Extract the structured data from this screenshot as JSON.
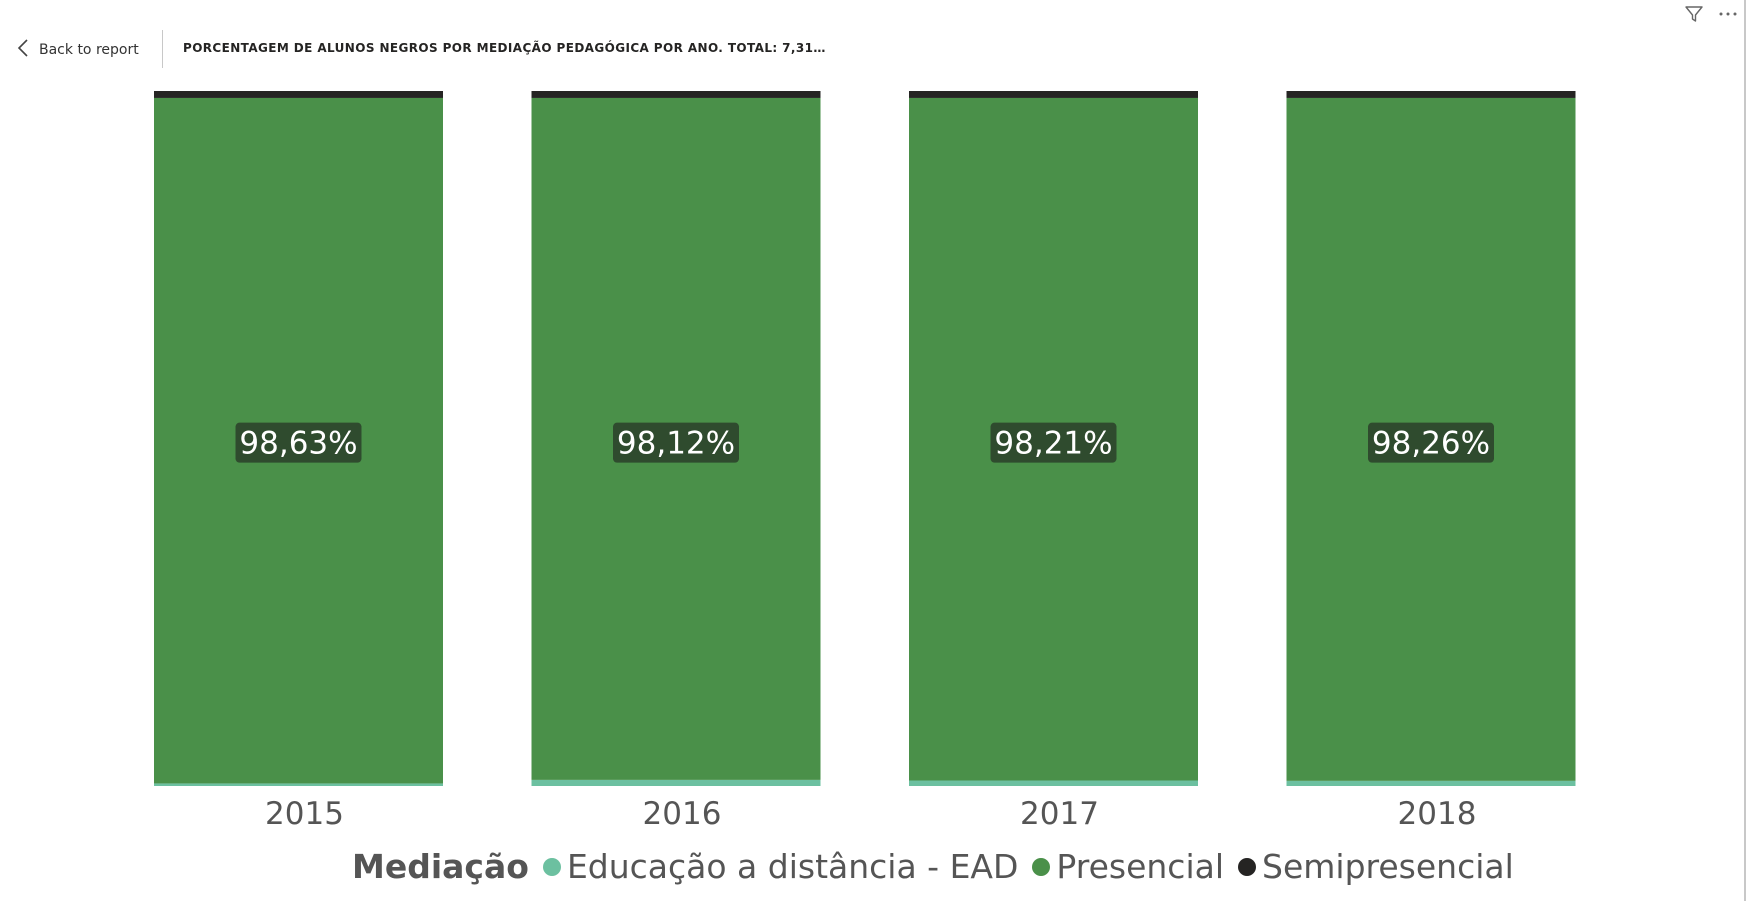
{
  "header": {
    "back_label": "Back to report",
    "title": "PORCENTAGEM DE ALUNOS NEGROS POR MEDIAÇÃO PEDAGÓGICA POR ANO. TOTAL: 7,31…"
  },
  "icons": {
    "back": "chevron-left-icon",
    "filter": "filter-icon",
    "more": "more-options-icon"
  },
  "colors": {
    "ead": "#6cc0a0",
    "presencial": "#4a9049",
    "semipresencial": "#252423",
    "label_bg": "#2f4b2e"
  },
  "chart_data": {
    "type": "bar",
    "stacked": "100%",
    "categories": [
      "2015",
      "2016",
      "2017",
      "2018"
    ],
    "series": [
      {
        "name": "Educação a distância - EAD",
        "values": [
          0.37,
          0.88,
          0.79,
          0.74
        ],
        "color": "#6cc0a0"
      },
      {
        "name": "Presencial",
        "values": [
          98.63,
          98.12,
          98.21,
          98.26
        ],
        "color": "#4a9049"
      },
      {
        "name": "Semipresencial",
        "values": [
          1.0,
          1.0,
          1.0,
          1.0
        ],
        "color": "#252423"
      }
    ],
    "data_labels": [
      "98,63%",
      "98,12%",
      "98,21%",
      "98,26%"
    ],
    "legend": {
      "title": "Mediação",
      "position": "bottom"
    },
    "ylim": [
      0,
      100
    ],
    "grid": false
  }
}
